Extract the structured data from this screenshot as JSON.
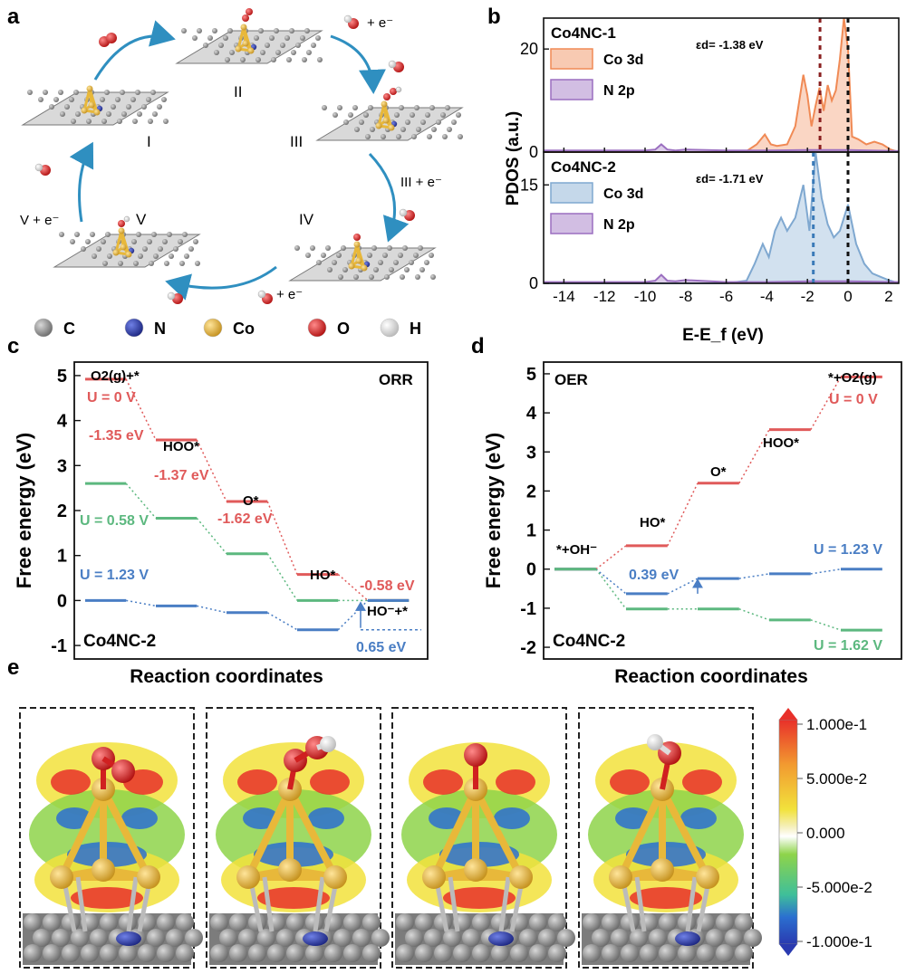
{
  "panel_labels": [
    "a",
    "b",
    "c",
    "d",
    "e"
  ],
  "panel_a": {
    "states": [
      "I",
      "II",
      "III",
      "IV",
      "V"
    ],
    "step_labels": {
      "top_right": "+ e⁻",
      "right": "III + e⁻",
      "bottom": "+ e⁻",
      "left": "V + e⁻"
    },
    "legend": [
      {
        "label": "C",
        "color": "#8a8a8a"
      },
      {
        "label": "N",
        "color": "#2b3aa8"
      },
      {
        "label": "Co",
        "color": "#e8b83a"
      },
      {
        "label": "O",
        "color": "#e02020"
      },
      {
        "label": "H",
        "color": "#f2f2f2"
      }
    ],
    "arrow_color": "#2f8fc0"
  },
  "chart_data": [
    {
      "id": "b-top",
      "type": "area",
      "title": "Co4NC-1",
      "ylabel": "PDOS (a.u.)",
      "xlabel": "E-E_f (eV)",
      "xlim": [
        -15,
        2.5
      ],
      "ylim": [
        0,
        26
      ],
      "yticks": [
        0,
        20
      ],
      "legend": [
        "Co 3d",
        "N 2p"
      ],
      "annotation": "εd= -1.38 eV",
      "d_band_center": -1.38,
      "fermi": 0,
      "series": [
        {
          "name": "Co 3d",
          "color": "#f08a55",
          "x": [
            -15,
            -10,
            -6,
            -5,
            -4.5,
            -4.1,
            -3.8,
            -3.5,
            -3,
            -2.6,
            -2.2,
            -2.0,
            -1.8,
            -1.6,
            -1.4,
            -1.2,
            -1.0,
            -0.8,
            -0.6,
            -0.4,
            -0.2,
            0,
            0.2,
            0.5,
            0.9,
            1.3,
            1.7,
            2.1,
            2.5
          ],
          "y": [
            0,
            0,
            0,
            0.2,
            1.5,
            3.4,
            1.5,
            1.2,
            1.5,
            5,
            15,
            11,
            5,
            9,
            12.5,
            8,
            13,
            10,
            12,
            18,
            26,
            20,
            3,
            2.5,
            1.5,
            2.0,
            1.5,
            0.5,
            0
          ]
        },
        {
          "name": "N 2p",
          "color": "#9b6fc0",
          "x": [
            -15,
            -10,
            -9.5,
            -9.2,
            -8.9,
            -8.5,
            -8,
            -6,
            -4,
            -2,
            0,
            2.5
          ],
          "y": [
            0.3,
            0.3,
            0.5,
            1.5,
            0.5,
            0.3,
            0.5,
            0.3,
            0.3,
            0.4,
            0.4,
            0.2
          ]
        }
      ]
    },
    {
      "id": "b-bottom",
      "type": "area",
      "title": "Co4NC-2",
      "xlabel": "E-E_f (eV)",
      "xlim": [
        -15,
        2.5
      ],
      "ylim": [
        0,
        20
      ],
      "yticks": [
        0,
        15
      ],
      "xticks": [
        -14,
        -12,
        -10,
        -8,
        -6,
        -4,
        -2,
        0,
        2
      ],
      "legend": [
        "Co 3d",
        "N 2p"
      ],
      "annotation": "εd= -1.71 eV",
      "d_band_center": -1.71,
      "fermi": 0,
      "series": [
        {
          "name": "Co 3d",
          "color": "#7fa8d0",
          "x": [
            -15,
            -10,
            -6,
            -5,
            -4.6,
            -4.2,
            -3.9,
            -3.6,
            -3.3,
            -3.0,
            -2.6,
            -2.2,
            -1.9,
            -1.6,
            -1.3,
            -1.0,
            -0.7,
            -0.4,
            0,
            0.4,
            0.8,
            1.2,
            1.6,
            2.0,
            2.5
          ],
          "y": [
            0,
            0,
            0,
            0.4,
            3,
            6,
            4,
            8,
            10,
            8,
            10,
            15,
            8,
            20,
            13,
            9,
            7,
            8,
            12,
            6,
            3,
            1.5,
            1,
            0.5,
            0
          ]
        },
        {
          "name": "N 2p",
          "color": "#9b6fc0",
          "x": [
            -15,
            -10,
            -9.5,
            -9.2,
            -8.9,
            -8.5,
            -8,
            -6,
            -4,
            -2,
            0,
            2.5
          ],
          "y": [
            0.2,
            0.2,
            0.4,
            1.3,
            0.4,
            0.3,
            0.5,
            0.2,
            0.2,
            0.3,
            0.3,
            0.2
          ]
        }
      ]
    },
    {
      "id": "c",
      "type": "line",
      "title": "ORR",
      "ylabel": "Free energy (eV)",
      "xlabel": "Reaction coordinates",
      "corner_label": "Co4NC-2",
      "ylim": [
        -1.3,
        5.3
      ],
      "yticks": [
        -1,
        0,
        1,
        2,
        3,
        4,
        5
      ],
      "steps": [
        "O2(g)+*",
        "HOO*",
        "O*",
        "HO*",
        "HO⁻+*"
      ],
      "series": [
        {
          "name": "U = 0 V",
          "color": "#e05a5a",
          "values": [
            4.92,
            3.57,
            2.2,
            0.58,
            0
          ]
        },
        {
          "name": "U = 0.58 V",
          "color": "#5cb87f",
          "values": [
            2.6,
            1.83,
            1.04,
            0.0,
            0
          ]
        },
        {
          "name": "U = 1.23 V",
          "color": "#4a7ec4",
          "values": [
            0,
            -0.12,
            -0.27,
            -0.65,
            0
          ]
        }
      ],
      "annotations": [
        "-1.35 eV",
        "-1.37 eV",
        "-1.62 eV",
        "-0.58 eV",
        "0.65 eV"
      ]
    },
    {
      "id": "d",
      "type": "line",
      "title": "OER",
      "ylabel": "Free energy (eV)",
      "xlabel": "Reaction coordinates",
      "corner_label": "Co4NC-2",
      "ylim": [
        -2.3,
        5.3
      ],
      "yticks": [
        -2,
        -1,
        0,
        1,
        2,
        3,
        4,
        5
      ],
      "steps": [
        "*+OH⁻",
        "HO*",
        "O*",
        "HOO*",
        "*+O2(g)"
      ],
      "series": [
        {
          "name": "U = 0 V",
          "color": "#e05a5a",
          "values": [
            0,
            0.6,
            2.2,
            3.57,
            4.92
          ]
        },
        {
          "name": "U = 1.23 V",
          "color": "#4a7ec4",
          "values": [
            0,
            -0.63,
            -0.24,
            -0.12,
            0
          ]
        },
        {
          "name": "U = 1.62 V",
          "color": "#5cb87f",
          "values": [
            0,
            -1.02,
            -1.02,
            -1.3,
            -1.56
          ]
        }
      ],
      "annotations": [
        "0.39 eV"
      ]
    }
  ],
  "panel_e": {
    "colorbar": {
      "labels": [
        "1.000e-1",
        "5.000e-2",
        "0.000",
        "-5.000e-2",
        "-1.000e-1"
      ],
      "colors": [
        "#e8302a",
        "#f29a30",
        "#f2e23c",
        "#ffffff",
        "#8ed44a",
        "#3fbf9a",
        "#2b6fd0",
        "#2a3ab0"
      ]
    }
  }
}
